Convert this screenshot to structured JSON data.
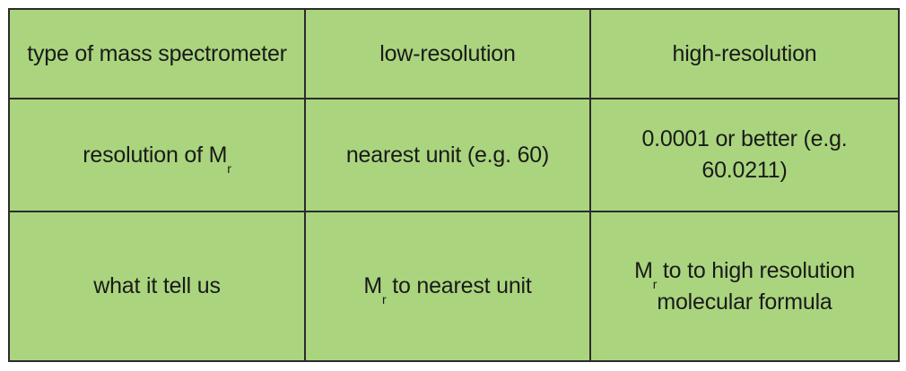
{
  "table": {
    "header": {
      "col1": "type of mass spectrometer",
      "col2": "low-resolution",
      "col3": "high-resolution"
    },
    "row_resolution": {
      "label_main": "resolution of M",
      "label_sub": "r",
      "low": "nearest unit (e.g. 60)",
      "high": "0.0001 or better (e.g. 60.0211)"
    },
    "row_tells": {
      "label": "what it tell us",
      "low_main": "M",
      "low_sub": "r",
      "low_rest": " to nearest unit",
      "high_main": "M",
      "high_sub": "r",
      "high_rest": " to to high resolution",
      "high_line2": "molecular formula"
    }
  },
  "colors": {
    "cell_background": "#aad57e",
    "border": "#2b2b2b",
    "text": "#1a1a1a"
  }
}
